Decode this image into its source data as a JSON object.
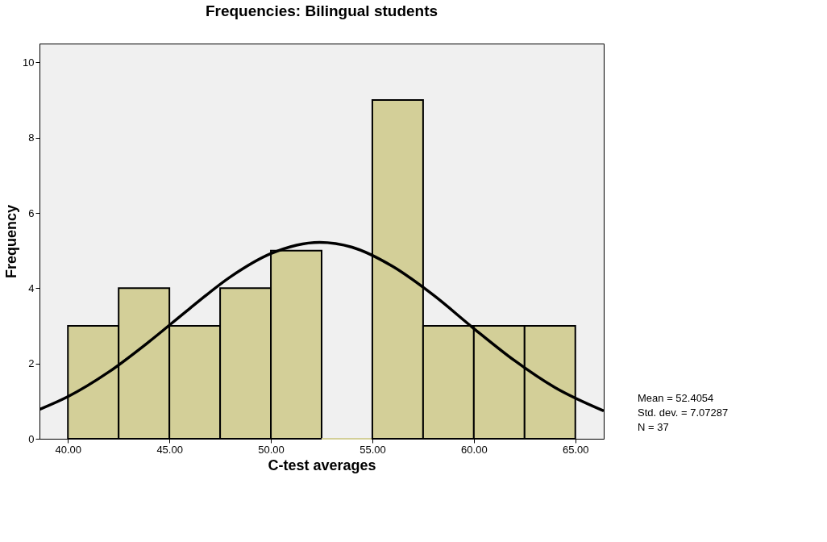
{
  "chart_data": {
    "type": "histogram",
    "title": "Frequencies: Bilingual students",
    "xlabel": "C-test averages",
    "ylabel": "Frequency",
    "bins": [
      40,
      42.5,
      45,
      47.5,
      50,
      52.5,
      55,
      57.5,
      60,
      62.5,
      65
    ],
    "values": [
      3,
      4,
      3,
      4,
      5,
      0,
      9,
      3,
      3,
      3
    ],
    "color": "#d3cf98",
    "series": [
      {
        "type": "line",
        "color": "#000000",
        "x": [
          38.6,
          40,
          42,
          44,
          46,
          48,
          50,
          52.4,
          54,
          56,
          58,
          60,
          62,
          64,
          66.4
        ],
        "values": [
          0.78,
          1.12,
          1.77,
          2.58,
          3.46,
          4.3,
          4.92,
          5.22,
          5.09,
          4.58,
          3.82,
          2.93,
          2.08,
          1.36,
          0.74
        ]
      }
    ],
    "xlim": [
      38.6,
      66.4
    ],
    "xticks": [
      {
        "value": 40,
        "label": "40.00"
      },
      {
        "value": 45,
        "label": "45.00"
      },
      {
        "value": 50,
        "label": "50.00"
      },
      {
        "value": 55,
        "label": "55.00"
      },
      {
        "value": 60,
        "label": "60.00"
      },
      {
        "value": 65,
        "label": "65.00"
      }
    ],
    "ylim": [
      0,
      10.5
    ],
    "yticks": [
      0,
      2,
      4,
      6,
      8,
      10
    ],
    "grid": false,
    "annotations": [
      "Mean = 52.4054",
      "Std. dev. = 7.07287",
      "N = 37"
    ]
  }
}
